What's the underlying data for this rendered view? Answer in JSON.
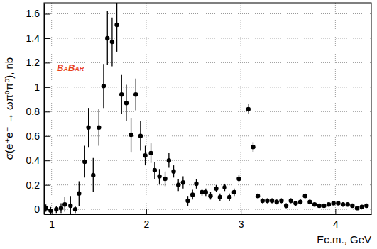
{
  "chart_data": {
    "type": "scatter",
    "x_label": "Ec.m., GeV",
    "y_label": "σ(e⁺e⁻ → ωπ⁰π⁰), nb",
    "annotation": "BaBar",
    "x": [
      0.94,
      0.99,
      1.05,
      1.1,
      1.14,
      1.2,
      1.25,
      1.29,
      1.35,
      1.39,
      1.44,
      1.5,
      1.55,
      1.59,
      1.64,
      1.69,
      1.74,
      1.79,
      1.84,
      1.89,
      1.94,
      1.99,
      2.05,
      2.09,
      2.14,
      2.2,
      2.24,
      2.29,
      2.34,
      2.39,
      2.44,
      2.49,
      2.53,
      2.59,
      2.63,
      2.68,
      2.74,
      2.78,
      2.83,
      2.88,
      2.93,
      2.98,
      3.08,
      3.13,
      3.18,
      3.23,
      3.28,
      3.33,
      3.38,
      3.43,
      3.48,
      3.53,
      3.58,
      3.63,
      3.68,
      3.73,
      3.78,
      3.83,
      3.88,
      3.93,
      3.98,
      4.03,
      4.08,
      4.13,
      4.18,
      4.23,
      4.28,
      4.33
    ],
    "values": [
      0.01,
      -0.01,
      0.0,
      0.01,
      0.04,
      0.03,
      0.0,
      0.13,
      0.39,
      0.67,
      0.28,
      0.67,
      1.01,
      1.4,
      1.37,
      1.51,
      0.94,
      0.87,
      0.61,
      0.94,
      0.6,
      0.44,
      0.46,
      0.32,
      0.27,
      0.25,
      0.4,
      0.31,
      0.2,
      0.22,
      0.07,
      0.12,
      0.21,
      0.14,
      0.14,
      0.11,
      0.17,
      0.1,
      0.18,
      0.1,
      0.14,
      0.25,
      0.82,
      0.51,
      0.11,
      0.07,
      0.07,
      0.07,
      0.06,
      0.07,
      0.03,
      0.07,
      0.05,
      0.06,
      0.11,
      0.06,
      0.04,
      0.03,
      0.03,
      0.04,
      0.05,
      0.05,
      0.04,
      0.04,
      0.03,
      0.01,
      0.02,
      0.03
    ],
    "errors": [
      0.03,
      0.03,
      0.03,
      0.04,
      0.06,
      0.08,
      0.03,
      0.1,
      0.13,
      0.16,
      0.14,
      0.15,
      0.18,
      0.22,
      0.2,
      0.22,
      0.16,
      0.15,
      0.14,
      0.13,
      0.12,
      0.08,
      0.08,
      0.07,
      0.06,
      0.06,
      0.06,
      0.05,
      0.05,
      0.05,
      0.04,
      0.04,
      0.04,
      0.03,
      0.03,
      0.03,
      0.03,
      0.03,
      0.03,
      0.03,
      0.03,
      0.03,
      0.04,
      0.04,
      0.02,
      0.02,
      0.02,
      0.02,
      0.02,
      0.02,
      0.02,
      0.02,
      0.02,
      0.02,
      0.02,
      0.02,
      0.01,
      0.01,
      0.01,
      0.01,
      0.01,
      0.01,
      0.01,
      0.01,
      0.01,
      0.01,
      0.01,
      0.01
    ],
    "xlim": [
      0.92,
      4.38
    ],
    "ylim": [
      -0.04,
      1.69
    ],
    "xticks": [
      1,
      2,
      3,
      4
    ],
    "yticks": [
      0,
      0.2,
      0.4,
      0.6,
      0.8,
      1,
      1.2,
      1.4,
      1.6
    ],
    "grid": true,
    "color": "#000000",
    "marker": "circle"
  }
}
